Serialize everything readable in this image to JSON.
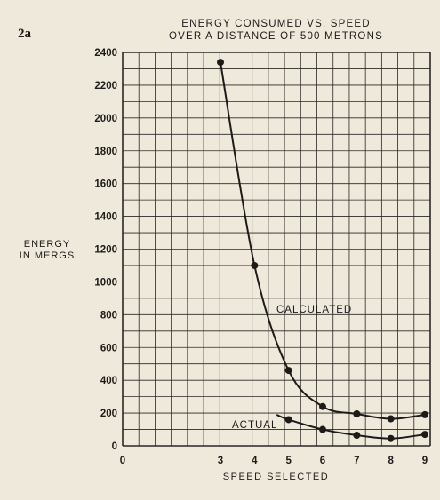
{
  "figure_label": "2a",
  "chart_data": {
    "type": "line",
    "title_lines": [
      "ENERGY CONSUMED VS. SPEED",
      "OVER A DISTANCE OF 500 METRONS"
    ],
    "ylabel_lines": [
      "ENERGY",
      "IN MERGS"
    ],
    "xlabel": "SPEED SELECTED",
    "x_ticks": [
      "0",
      "3",
      "4",
      "5",
      "6",
      "7",
      "8",
      "9"
    ],
    "y_ticks": [
      "0",
      "200",
      "400",
      "600",
      "800",
      "1000",
      "1200",
      "1400",
      "1600",
      "1800",
      "2000",
      "2200",
      "2400"
    ],
    "ylim": [
      0,
      2400
    ],
    "grid": true,
    "series": [
      {
        "name": "CALCULATED",
        "x": [
          3,
          4,
          5,
          6,
          7,
          8,
          9
        ],
        "y": [
          2340,
          1100,
          460,
          240,
          195,
          165,
          190
        ]
      },
      {
        "name": "ACTUAL",
        "x": [
          5,
          6,
          7,
          8,
          9
        ],
        "y": [
          160,
          100,
          65,
          45,
          70
        ]
      }
    ]
  }
}
